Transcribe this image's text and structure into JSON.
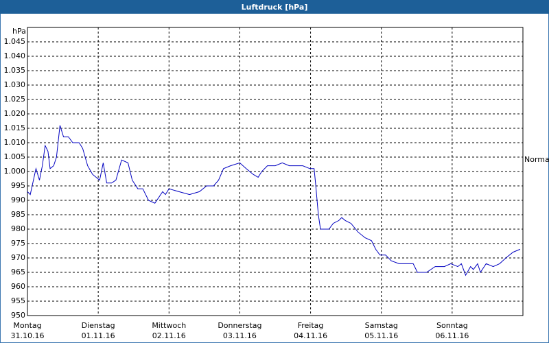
{
  "chart_data": {
    "type": "line",
    "title": "Luftdruck [hPa]",
    "y_label": "hPa",
    "annotation": "Normal",
    "xlim": [
      0,
      7
    ],
    "xticks": [
      {
        "value": 0,
        "label": "Montag"
      },
      {
        "value": 1,
        "label": "Dienstag"
      },
      {
        "value": 2,
        "label": "Mittwoch"
      },
      {
        "value": 3,
        "label": "Donnerstag"
      },
      {
        "value": 4,
        "label": "Freitag"
      },
      {
        "value": 5,
        "label": "Samstag"
      },
      {
        "value": 6,
        "label": "Sonntag"
      }
    ],
    "xtick_dates": [
      "31.10.16",
      "01.11.16",
      "02.11.16",
      "03.11.16",
      "04.11.16",
      "05.11.16",
      "06.11.16"
    ],
    "ylim": [
      950,
      1050
    ],
    "yticks": [
      950,
      955,
      960,
      965,
      970,
      975,
      980,
      985,
      990,
      995,
      {
        "value": 1000,
        "label": "1.000"
      },
      {
        "value": 1005,
        "label": "1.005"
      },
      {
        "value": 1010,
        "label": "1.010"
      },
      {
        "value": 1015,
        "label": "1.015"
      },
      {
        "value": 1020,
        "label": "1.020"
      },
      {
        "value": 1025,
        "label": "1.025"
      },
      {
        "value": 1030,
        "label": "1.030"
      },
      {
        "value": 1035,
        "label": "1.035"
      },
      {
        "value": 1040,
        "label": "1.040"
      },
      {
        "value": 1045,
        "label": "1.045"
      }
    ],
    "grid": true,
    "x": [
      0,
      0.04,
      0.12,
      0.17,
      0.21,
      0.25,
      0.29,
      0.32,
      0.37,
      0.41,
      0.46,
      0.51,
      0.58,
      0.64,
      0.73,
      0.78,
      0.85,
      0.92,
      1.02,
      1.07,
      1.12,
      1.19,
      1.25,
      1.33,
      1.42,
      1.48,
      1.56,
      1.63,
      1.71,
      1.8,
      1.91,
      1.95,
      2.0,
      2.14,
      2.29,
      2.43,
      2.53,
      2.63,
      2.7,
      2.77,
      2.87,
      3.0,
      3.09,
      3.19,
      3.26,
      3.31,
      3.39,
      3.5,
      3.6,
      3.7,
      3.79,
      3.89,
      3.99,
      4.05,
      4.07,
      4.11,
      4.14,
      4.26,
      4.32,
      4.4,
      4.44,
      4.49,
      4.57,
      4.67,
      4.77,
      4.86,
      4.92,
      4.98,
      5.06,
      5.14,
      5.25,
      5.35,
      5.45,
      5.51,
      5.64,
      5.76,
      5.89,
      5.98,
      6.08,
      6.13,
      6.19,
      6.26,
      6.3,
      6.36,
      6.4,
      6.48,
      6.58,
      6.67,
      6.76,
      6.86,
      6.96
    ],
    "series": [
      {
        "color": "#0000c0",
        "values": [
          993,
          992,
          1001,
          997,
          1002,
          1009,
          1007,
          1001,
          1002,
          1005,
          1016,
          1012,
          1012,
          1010,
          1010,
          1008,
          1002,
          999,
          997,
          1003,
          996,
          996,
          997,
          1004,
          1003,
          997,
          994,
          994,
          990,
          989,
          993,
          992,
          994,
          993,
          992,
          993,
          995,
          995,
          997,
          1001,
          1002,
          1003,
          1001,
          999,
          998,
          1000,
          1002,
          1002,
          1003,
          1002,
          1002,
          1002,
          1001,
          1001,
          996,
          985,
          980,
          980,
          982,
          983,
          984,
          983,
          982,
          979,
          977,
          976,
          973,
          971,
          971,
          969,
          968,
          968,
          968,
          965,
          965,
          967,
          967,
          968,
          967,
          968,
          964,
          967,
          966,
          968,
          965,
          968,
          967,
          968,
          970,
          972,
          973
        ]
      }
    ]
  }
}
